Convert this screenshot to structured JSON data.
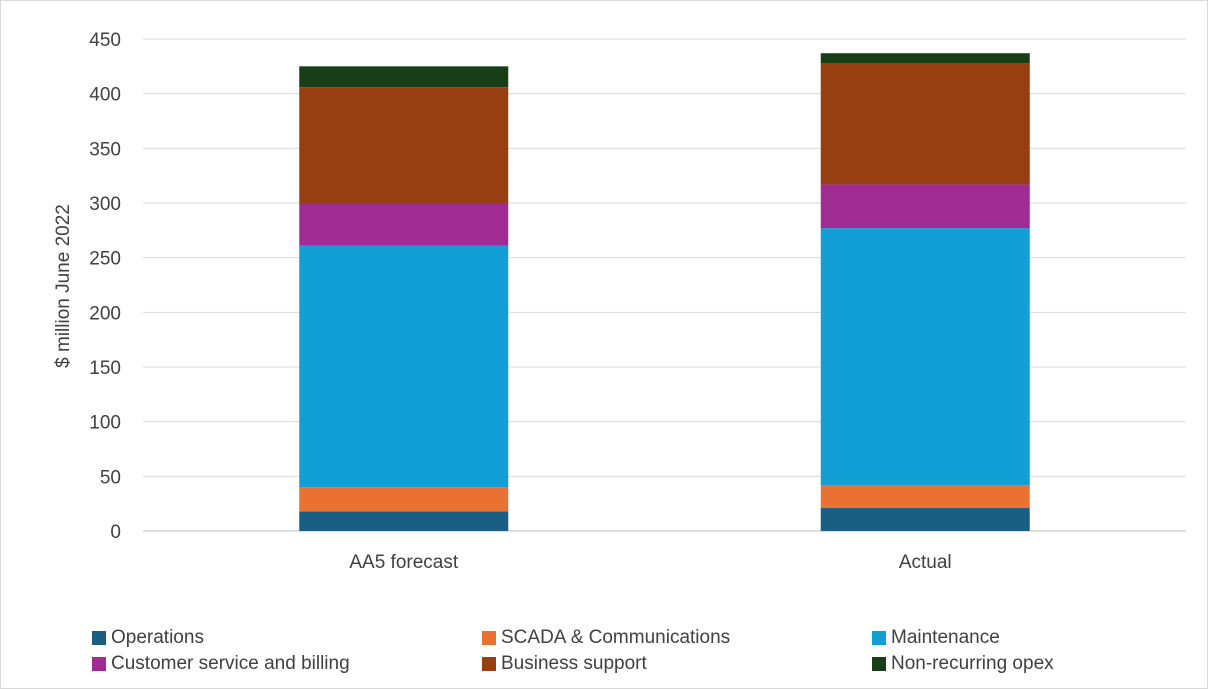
{
  "chart_data": {
    "type": "bar",
    "stacked": true,
    "categories": [
      "AA5 forecast",
      "Actual"
    ],
    "ylabel": "$ million June 2022",
    "ylim": [
      0,
      450
    ],
    "yticks": [
      0,
      50,
      100,
      150,
      200,
      250,
      300,
      350,
      400,
      450
    ],
    "grid": true,
    "legend_position": "bottom",
    "series": [
      {
        "name": "Operations",
        "color": "#1b5e84",
        "values": [
          18,
          21
        ]
      },
      {
        "name": "SCADA & Communications",
        "color": "#e97132",
        "values": [
          22,
          21
        ]
      },
      {
        "name": "Maintenance",
        "color": "#119fd6",
        "values": [
          221,
          235
        ]
      },
      {
        "name": "Customer service and billing",
        "color": "#a02b93",
        "values": [
          39,
          40
        ]
      },
      {
        "name": "Business support",
        "color": "#983f11",
        "values": [
          106,
          111
        ]
      },
      {
        "name": "Non-recurring opex",
        "color": "#173f17",
        "values": [
          19,
          9
        ]
      }
    ]
  }
}
